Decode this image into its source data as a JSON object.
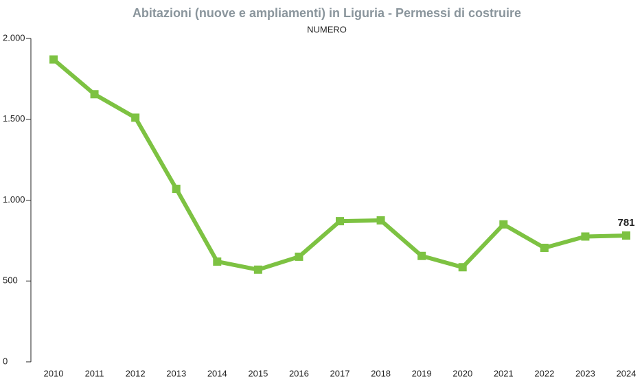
{
  "chart_data": {
    "type": "line",
    "title": "Abitazioni (nuove e ampliamenti) in Liguria - Permessi di costruire",
    "subtitle": "NUMERO",
    "categories": [
      "2010",
      "2011",
      "2012",
      "2013",
      "2014",
      "2015",
      "2016",
      "2017",
      "2018",
      "2019",
      "2020",
      "2021",
      "2022",
      "2023",
      "2024"
    ],
    "series": [
      {
        "name": "Abitazioni",
        "color": "#7dc242",
        "values": [
          1870,
          1655,
          1510,
          1070,
          620,
          570,
          650,
          870,
          875,
          655,
          585,
          850,
          705,
          775,
          781
        ]
      }
    ],
    "ylim": [
      0,
      2000
    ],
    "yticks": [
      0,
      500,
      {
        "value": 1000,
        "label": "1.000"
      },
      {
        "value": 1500,
        "label": "1.500"
      },
      {
        "value": 2000,
        "label": "2.000"
      }
    ],
    "grid": false
  }
}
